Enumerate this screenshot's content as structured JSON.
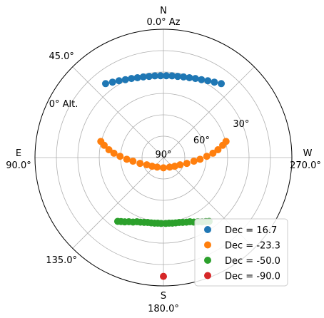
{
  "chart_data": {
    "type": "scatter",
    "projection": "polar",
    "orientation": "North at top, azimuth increasing counter-clockwise (East on left, West on right); radius = 90 - altitude",
    "grid": true,
    "legend_placement": "lower-right",
    "compass": {
      "N": "N",
      "E": "E",
      "S": "S",
      "W": "W"
    },
    "azimuth_ticks": [
      {
        "az": 0,
        "label": "0.0° Az"
      },
      {
        "az": 45,
        "label": "45.0°"
      },
      {
        "az": 90,
        "label": "90.0°"
      },
      {
        "az": 135,
        "label": "135.0°"
      },
      {
        "az": 180,
        "label": "180.0°"
      },
      {
        "az": 270,
        "label": "270.0°"
      }
    ],
    "altitude_ticks": [
      {
        "alt": 0,
        "label": "0° Alt."
      },
      {
        "alt": 30,
        "label": "30°"
      },
      {
        "alt": 60,
        "label": "60°"
      },
      {
        "alt": 90,
        "label": "90°"
      }
    ],
    "series": [
      {
        "name": "Dec = 16.7",
        "color": "#1f77b4",
        "points": [
          {
            "az": 322,
            "alt": 24.2
          },
          {
            "az": 326,
            "alt": 26.2
          },
          {
            "az": 330,
            "alt": 27.8
          },
          {
            "az": 334,
            "alt": 29.2
          },
          {
            "az": 338,
            "alt": 30.2
          },
          {
            "az": 342,
            "alt": 31.1
          },
          {
            "az": 346,
            "alt": 31.7
          },
          {
            "az": 350,
            "alt": 32.2
          },
          {
            "az": 354,
            "alt": 32.4
          },
          {
            "az": 358,
            "alt": 32.6
          },
          {
            "az": 2,
            "alt": 32.6
          },
          {
            "az": 6,
            "alt": 32.4
          },
          {
            "az": 10,
            "alt": 32.2
          },
          {
            "az": 14,
            "alt": 31.7
          },
          {
            "az": 18,
            "alt": 31.1
          },
          {
            "az": 22,
            "alt": 30.2
          },
          {
            "az": 26,
            "alt": 29.2
          },
          {
            "az": 30,
            "alt": 27.8
          },
          {
            "az": 34,
            "alt": 26.2
          },
          {
            "az": 38,
            "alt": 24.2
          }
        ]
      },
      {
        "name": "Dec = -23.3",
        "color": "#ff7f0e",
        "points": [
          {
            "az": 75.5,
            "alt": 44.7
          },
          {
            "az": 78.3,
            "alt": 47.6
          },
          {
            "az": 81.8,
            "alt": 51.4
          },
          {
            "az": 85.0,
            "alt": 55.2
          },
          {
            "az": 88.3,
            "alt": 59.6
          },
          {
            "az": 92.6,
            "alt": 64.3
          },
          {
            "az": 96.8,
            "alt": 68.5
          },
          {
            "az": 104,
            "alt": 73.1
          },
          {
            "az": 113.5,
            "alt": 77.3
          },
          {
            "az": 127.5,
            "alt": 80.0
          },
          {
            "az": 146.5,
            "alt": 82.0
          },
          {
            "az": 180,
            "alt": 82.8
          },
          {
            "az": 213.5,
            "alt": 82.0
          },
          {
            "az": 232.5,
            "alt": 80.0
          },
          {
            "az": 246.5,
            "alt": 77.3
          },
          {
            "az": 256,
            "alt": 73.1
          },
          {
            "az": 263.2,
            "alt": 68.5
          },
          {
            "az": 267.4,
            "alt": 64.3
          },
          {
            "az": 271.7,
            "alt": 59.6
          },
          {
            "az": 275.0,
            "alt": 55.2
          },
          {
            "az": 278.2,
            "alt": 51.4
          },
          {
            "az": 281.7,
            "alt": 47.6
          },
          {
            "az": 284.5,
            "alt": 44.7
          }
        ]
      },
      {
        "name": "Dec = -50.0",
        "color": "#2ca02c",
        "points": [
          {
            "az": 144.4,
            "alt": 35.0
          },
          {
            "az": 146.5,
            "alt": 36.2
          },
          {
            "az": 149.0,
            "alt": 37.4
          },
          {
            "az": 151.7,
            "alt": 38.9
          },
          {
            "az": 154.8,
            "alt": 40.0
          },
          {
            "az": 157.6,
            "alt": 41.3
          },
          {
            "az": 160.4,
            "alt": 41.9
          },
          {
            "az": 163.4,
            "alt": 42.6
          },
          {
            "az": 166.4,
            "alt": 43.2
          },
          {
            "az": 169.4,
            "alt": 43.4
          },
          {
            "az": 172.3,
            "alt": 43.6
          },
          {
            "az": 175.1,
            "alt": 43.8
          },
          {
            "az": 178.0,
            "alt": 43.8
          },
          {
            "az": 182.0,
            "alt": 43.8
          },
          {
            "az": 184.9,
            "alt": 43.8
          },
          {
            "az": 187.7,
            "alt": 43.6
          },
          {
            "az": 190.6,
            "alt": 43.4
          },
          {
            "az": 193.6,
            "alt": 43.2
          },
          {
            "az": 196.6,
            "alt": 42.6
          },
          {
            "az": 199.6,
            "alt": 41.9
          },
          {
            "az": 202.4,
            "alt": 41.3
          },
          {
            "az": 205.2,
            "alt": 40.0
          },
          {
            "az": 208.3,
            "alt": 38.9
          },
          {
            "az": 211.0,
            "alt": 37.4
          },
          {
            "az": 213.5,
            "alt": 36.2
          },
          {
            "az": 215.6,
            "alt": 35.0
          }
        ]
      },
      {
        "name": "Dec = -90.0",
        "color": "#d62728",
        "points": [
          {
            "az": 180,
            "alt": 6.7
          }
        ]
      }
    ]
  }
}
